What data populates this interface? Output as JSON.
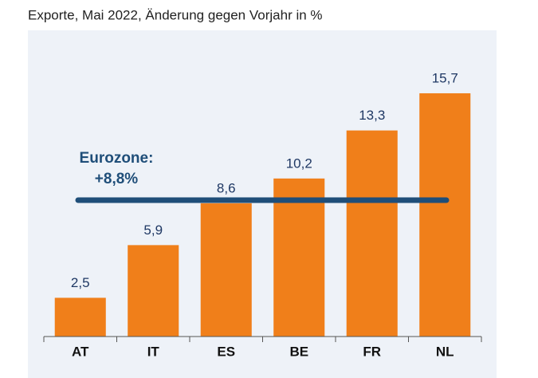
{
  "chart_data": {
    "type": "bar",
    "title": "Exporte, Mai 2022, Änderung gegen Vorjahr in %",
    "categories": [
      "AT",
      "IT",
      "ES",
      "BE",
      "FR",
      "NL"
    ],
    "values": [
      2.5,
      5.9,
      8.6,
      10.2,
      13.3,
      15.7
    ],
    "value_labels": [
      "2,5",
      "5,9",
      "8,6",
      "10,2",
      "13,3",
      "15,7"
    ],
    "color": "#f07f1a",
    "ylim": [
      0,
      17.5
    ],
    "reference": {
      "label": "Eurozone:",
      "value": 8.8,
      "value_label": "+8,8%",
      "color": "#1f4e79"
    }
  }
}
